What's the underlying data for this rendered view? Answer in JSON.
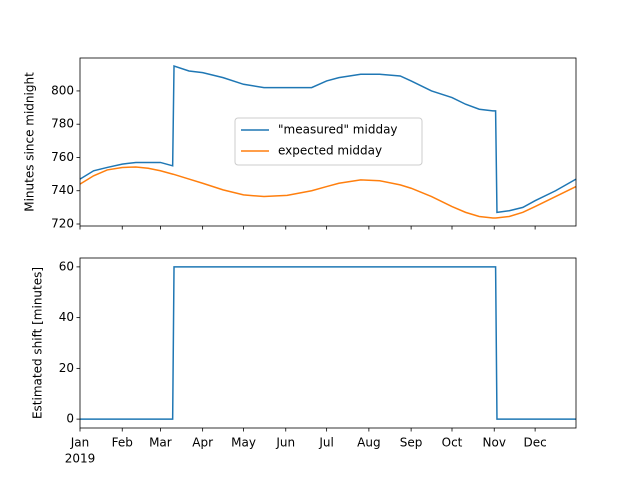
{
  "chart_data": [
    {
      "type": "line",
      "y_label": "Minutes since midnight",
      "x": [
        0,
        10,
        20,
        31,
        41,
        50,
        59,
        68,
        69,
        80,
        90,
        105,
        120,
        135,
        152,
        170,
        181,
        190,
        206,
        220,
        235,
        243,
        258,
        273,
        283,
        293,
        303,
        305,
        306,
        315,
        325,
        334,
        349,
        364
      ],
      "xlim": [
        0,
        364
      ],
      "xticks": [
        0,
        31,
        59,
        90,
        120,
        151,
        181,
        212,
        243,
        273,
        304,
        334
      ],
      "ylim": [
        718.8,
        819.8
      ],
      "yticks": [
        720,
        740,
        760,
        780,
        800
      ],
      "legend": "center",
      "series": [
        {
          "name": "\"measured\" midday",
          "color": "#1f77b4",
          "values": [
            747,
            752,
            754,
            756,
            757,
            757,
            757,
            755,
            815,
            812,
            811,
            808,
            804,
            802,
            802,
            802,
            806,
            808,
            810,
            810,
            809,
            806,
            800,
            796,
            792,
            789,
            788,
            788,
            727,
            728,
            730,
            734,
            740,
            747
          ]
        },
        {
          "name": "expected midday",
          "color": "#ff7f0e",
          "values": [
            744,
            749,
            752.5,
            754,
            754.3,
            753.5,
            752,
            750,
            749.8,
            747,
            744.5,
            740.5,
            737.5,
            736.5,
            737.2,
            740,
            742.5,
            744.5,
            746.5,
            746,
            743.5,
            741.5,
            736.5,
            730.5,
            727,
            724.5,
            723.6,
            723.6,
            723.7,
            724.5,
            727,
            730.5,
            736.5,
            742.5
          ]
        }
      ]
    },
    {
      "type": "line",
      "y_label": "Estimated shift [minutes]",
      "year_label": "2019",
      "x": [
        0,
        68,
        69,
        305,
        306,
        364
      ],
      "xlim": [
        0,
        364
      ],
      "xticks": [
        {
          "value": 0,
          "label": "Jan"
        },
        {
          "value": 31,
          "label": "Feb"
        },
        {
          "value": 59,
          "label": "Mar"
        },
        {
          "value": 90,
          "label": "Apr"
        },
        {
          "value": 120,
          "label": "May"
        },
        {
          "value": 151,
          "label": "Jun"
        },
        {
          "value": 181,
          "label": "Jul"
        },
        {
          "value": 212,
          "label": "Aug"
        },
        {
          "value": 243,
          "label": "Sep"
        },
        {
          "value": 273,
          "label": "Oct"
        },
        {
          "value": 304,
          "label": "Nov"
        },
        {
          "value": 334,
          "label": "Dec"
        }
      ],
      "ylim": [
        -3.5,
        63.5
      ],
      "yticks": [
        0,
        20,
        40,
        60
      ],
      "series": [
        {
          "color": "#1f77b4",
          "values": [
            0,
            0,
            60,
            60,
            0,
            0
          ]
        }
      ]
    }
  ]
}
